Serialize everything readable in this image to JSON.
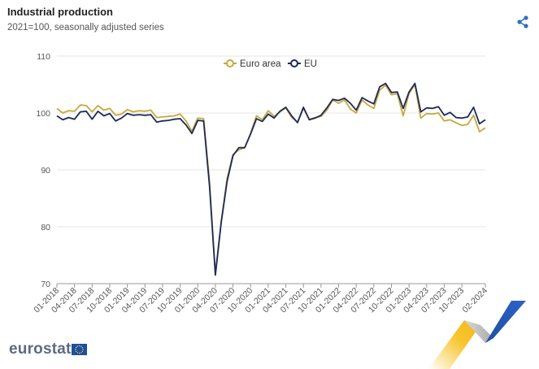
{
  "header": {
    "title": "Industrial production",
    "subtitle": "2021=100, seasonally adjusted series"
  },
  "logo": {
    "text": "eurostat"
  },
  "icons": {
    "share": "share-icon",
    "flag": "eu-flag-icon"
  },
  "chart_data": {
    "type": "line",
    "title": "Industrial production",
    "subtitle": "2021=100, seasonally adjusted series",
    "xlabel": "",
    "ylabel": "",
    "ylim": [
      70,
      110
    ],
    "yticks": [
      70,
      80,
      90,
      100,
      110
    ],
    "grid": true,
    "legend": "top-center",
    "x": [
      "01-2018",
      "02-2018",
      "03-2018",
      "04-2018",
      "05-2018",
      "06-2018",
      "07-2018",
      "08-2018",
      "09-2018",
      "10-2018",
      "11-2018",
      "12-2018",
      "01-2019",
      "02-2019",
      "03-2019",
      "04-2019",
      "05-2019",
      "06-2019",
      "07-2019",
      "08-2019",
      "09-2019",
      "10-2019",
      "11-2019",
      "12-2019",
      "01-2020",
      "02-2020",
      "03-2020",
      "04-2020",
      "05-2020",
      "06-2020",
      "07-2020",
      "08-2020",
      "09-2020",
      "10-2020",
      "11-2020",
      "12-2020",
      "01-2021",
      "02-2021",
      "03-2021",
      "04-2021",
      "05-2021",
      "06-2021",
      "07-2021",
      "08-2021",
      "09-2021",
      "10-2021",
      "11-2021",
      "12-2021",
      "01-2022",
      "02-2022",
      "03-2022",
      "04-2022",
      "05-2022",
      "06-2022",
      "07-2022",
      "08-2022",
      "09-2022",
      "10-2022",
      "11-2022",
      "12-2022",
      "01-2023",
      "02-2023",
      "03-2023",
      "04-2023",
      "05-2023",
      "06-2023",
      "07-2023",
      "08-2023",
      "09-2023",
      "10-2023",
      "11-2023",
      "12-2023",
      "01-2024",
      "02-2024"
    ],
    "xtick_labels": [
      "01-2018",
      "04-2018",
      "07-2018",
      "10-2018",
      "01-2019",
      "04-2019",
      "07-2019",
      "10-2019",
      "01-2020",
      "04-2020",
      "07-2020",
      "10-2020",
      "01-2021",
      "04-2021",
      "07-2021",
      "10-2021",
      "01-2022",
      "04-2022",
      "07-2022",
      "10-2022",
      "01-2023",
      "04-2023",
      "07-2023",
      "10-2023",
      "02-2024"
    ],
    "series": [
      {
        "name": "Euro area",
        "color": "#c9a83b",
        "values": [
          100.8,
          100.0,
          100.4,
          100.3,
          101.4,
          101.3,
          100.2,
          101.3,
          100.5,
          100.8,
          99.6,
          99.8,
          100.6,
          100.2,
          100.4,
          100.3,
          100.5,
          99.2,
          99.3,
          99.4,
          99.5,
          99.8,
          98.6,
          96.8,
          99.1,
          99.0,
          88.0,
          71.8,
          81.0,
          88.5,
          92.7,
          93.5,
          93.9,
          96.4,
          99.5,
          98.8,
          100.4,
          99.4,
          100.2,
          100.9,
          99.2,
          98.4,
          100.8,
          98.9,
          99.2,
          99.4,
          100.5,
          102.3,
          101.7,
          102.3,
          100.7,
          100.0,
          102.3,
          101.4,
          100.8,
          104.0,
          104.9,
          103.2,
          103.4,
          99.5,
          103.4,
          105.0,
          99.1,
          99.9,
          99.8,
          100.0,
          98.6,
          98.8,
          98.3,
          97.8,
          98.0,
          99.6,
          96.7,
          97.4
        ]
      },
      {
        "name": "EU",
        "color": "#1b2a5c",
        "values": [
          99.5,
          98.8,
          99.2,
          98.9,
          100.2,
          100.3,
          98.9,
          100.3,
          99.5,
          99.9,
          98.6,
          99.1,
          99.9,
          99.6,
          99.7,
          99.6,
          99.7,
          98.4,
          98.6,
          98.7,
          98.9,
          99.0,
          97.9,
          96.4,
          98.7,
          98.6,
          87.2,
          71.5,
          80.8,
          88.0,
          92.5,
          93.9,
          93.9,
          96.3,
          99.0,
          98.5,
          99.8,
          99.1,
          100.3,
          101.0,
          99.5,
          98.3,
          101.0,
          98.8,
          99.1,
          99.6,
          100.9,
          102.4,
          102.2,
          102.6,
          101.7,
          100.5,
          102.7,
          102.1,
          101.6,
          104.6,
          105.2,
          103.6,
          103.7,
          100.8,
          103.7,
          105.2,
          100.2,
          100.9,
          100.8,
          101.1,
          99.6,
          100.1,
          99.2,
          99.1,
          99.3,
          101.0,
          98.1,
          98.8
        ]
      }
    ]
  }
}
